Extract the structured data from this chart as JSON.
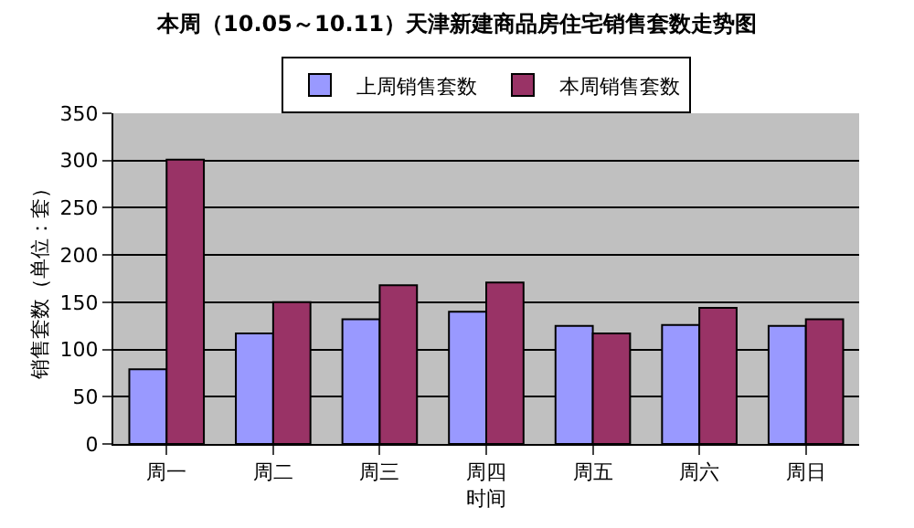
{
  "chart_data": {
    "type": "bar",
    "title": "本周（10.05～10.11）天津新建商品房住宅销售套数走势图",
    "xlabel": "时间",
    "ylabel": "销售套数（单位：套）",
    "categories": [
      "周一",
      "周二",
      "周三",
      "周四",
      "周五",
      "周六",
      "周日"
    ],
    "series": [
      {
        "name": "上周销售套数",
        "color": "#9999ff",
        "values": [
          79,
          117,
          132,
          140,
          125,
          126,
          125
        ]
      },
      {
        "name": "本周销售套数",
        "color": "#993366",
        "values": [
          301,
          150,
          168,
          171,
          117,
          144,
          132
        ]
      }
    ],
    "ylim": [
      0,
      350
    ],
    "yticks": [
      0,
      50,
      100,
      150,
      200,
      250,
      300,
      350
    ],
    "grid": "y",
    "legend": "top"
  }
}
